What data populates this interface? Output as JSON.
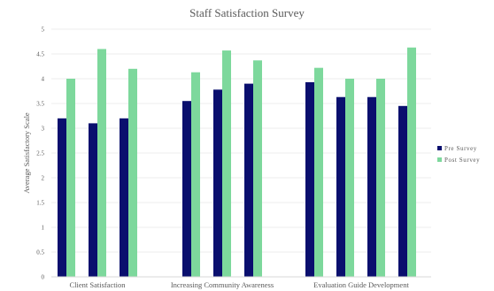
{
  "chart_data": {
    "type": "bar",
    "title": "Staff Satisfaction Survey",
    "ylabel": "Average Satisfactory Scale",
    "xlabel": "",
    "ylim": [
      0,
      5
    ],
    "yticks": [
      "0",
      "0.5",
      "1",
      "1.5",
      "2",
      "2.5",
      "3",
      "3.5",
      "4",
      "4.5",
      "5"
    ],
    "grid": true,
    "legend_position": "right",
    "groups": [
      {
        "label": "Client Satisfaction",
        "bars": 3
      },
      {
        "label": "Increasing Community Awareness",
        "bars": 3
      },
      {
        "label": "Evaluation Guide Development",
        "bars": 4
      }
    ],
    "series": [
      {
        "name": "Pre Survey",
        "color": "#0a0f6e",
        "values": [
          3.2,
          3.1,
          3.2,
          3.55,
          3.78,
          3.9,
          3.93,
          3.63,
          3.63,
          3.45
        ]
      },
      {
        "name": "Post Survey",
        "color": "#7dd89c",
        "values": [
          4.0,
          4.6,
          4.2,
          4.13,
          4.57,
          4.37,
          4.22,
          4.0,
          4.0,
          4.63
        ]
      }
    ]
  }
}
